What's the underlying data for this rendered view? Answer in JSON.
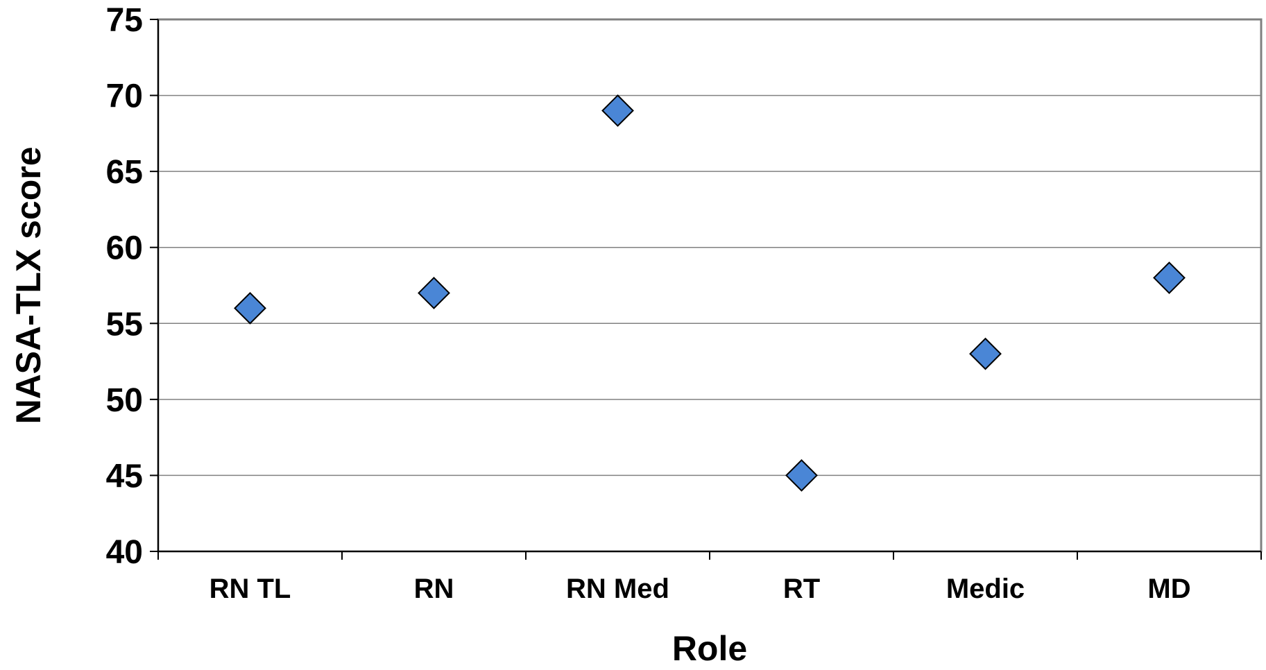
{
  "chart_data": {
    "type": "scatter",
    "title": "",
    "xlabel": "Role",
    "ylabel": "NASA-TLX score",
    "categories": [
      "RN TL",
      "RN",
      "RN Med",
      "RT",
      "Medic",
      "MD"
    ],
    "values": [
      56,
      57,
      69,
      45,
      53,
      58
    ],
    "ylim": [
      40,
      75
    ],
    "yticks": [
      40,
      45,
      50,
      55,
      60,
      65,
      70,
      75
    ],
    "grid": true,
    "legend": "none",
    "marker": "diamond",
    "colors": {
      "marker_fill": "#4a86d6",
      "marker_stroke": "#000000",
      "grid": "#808080",
      "plot_border": "#808080"
    }
  }
}
